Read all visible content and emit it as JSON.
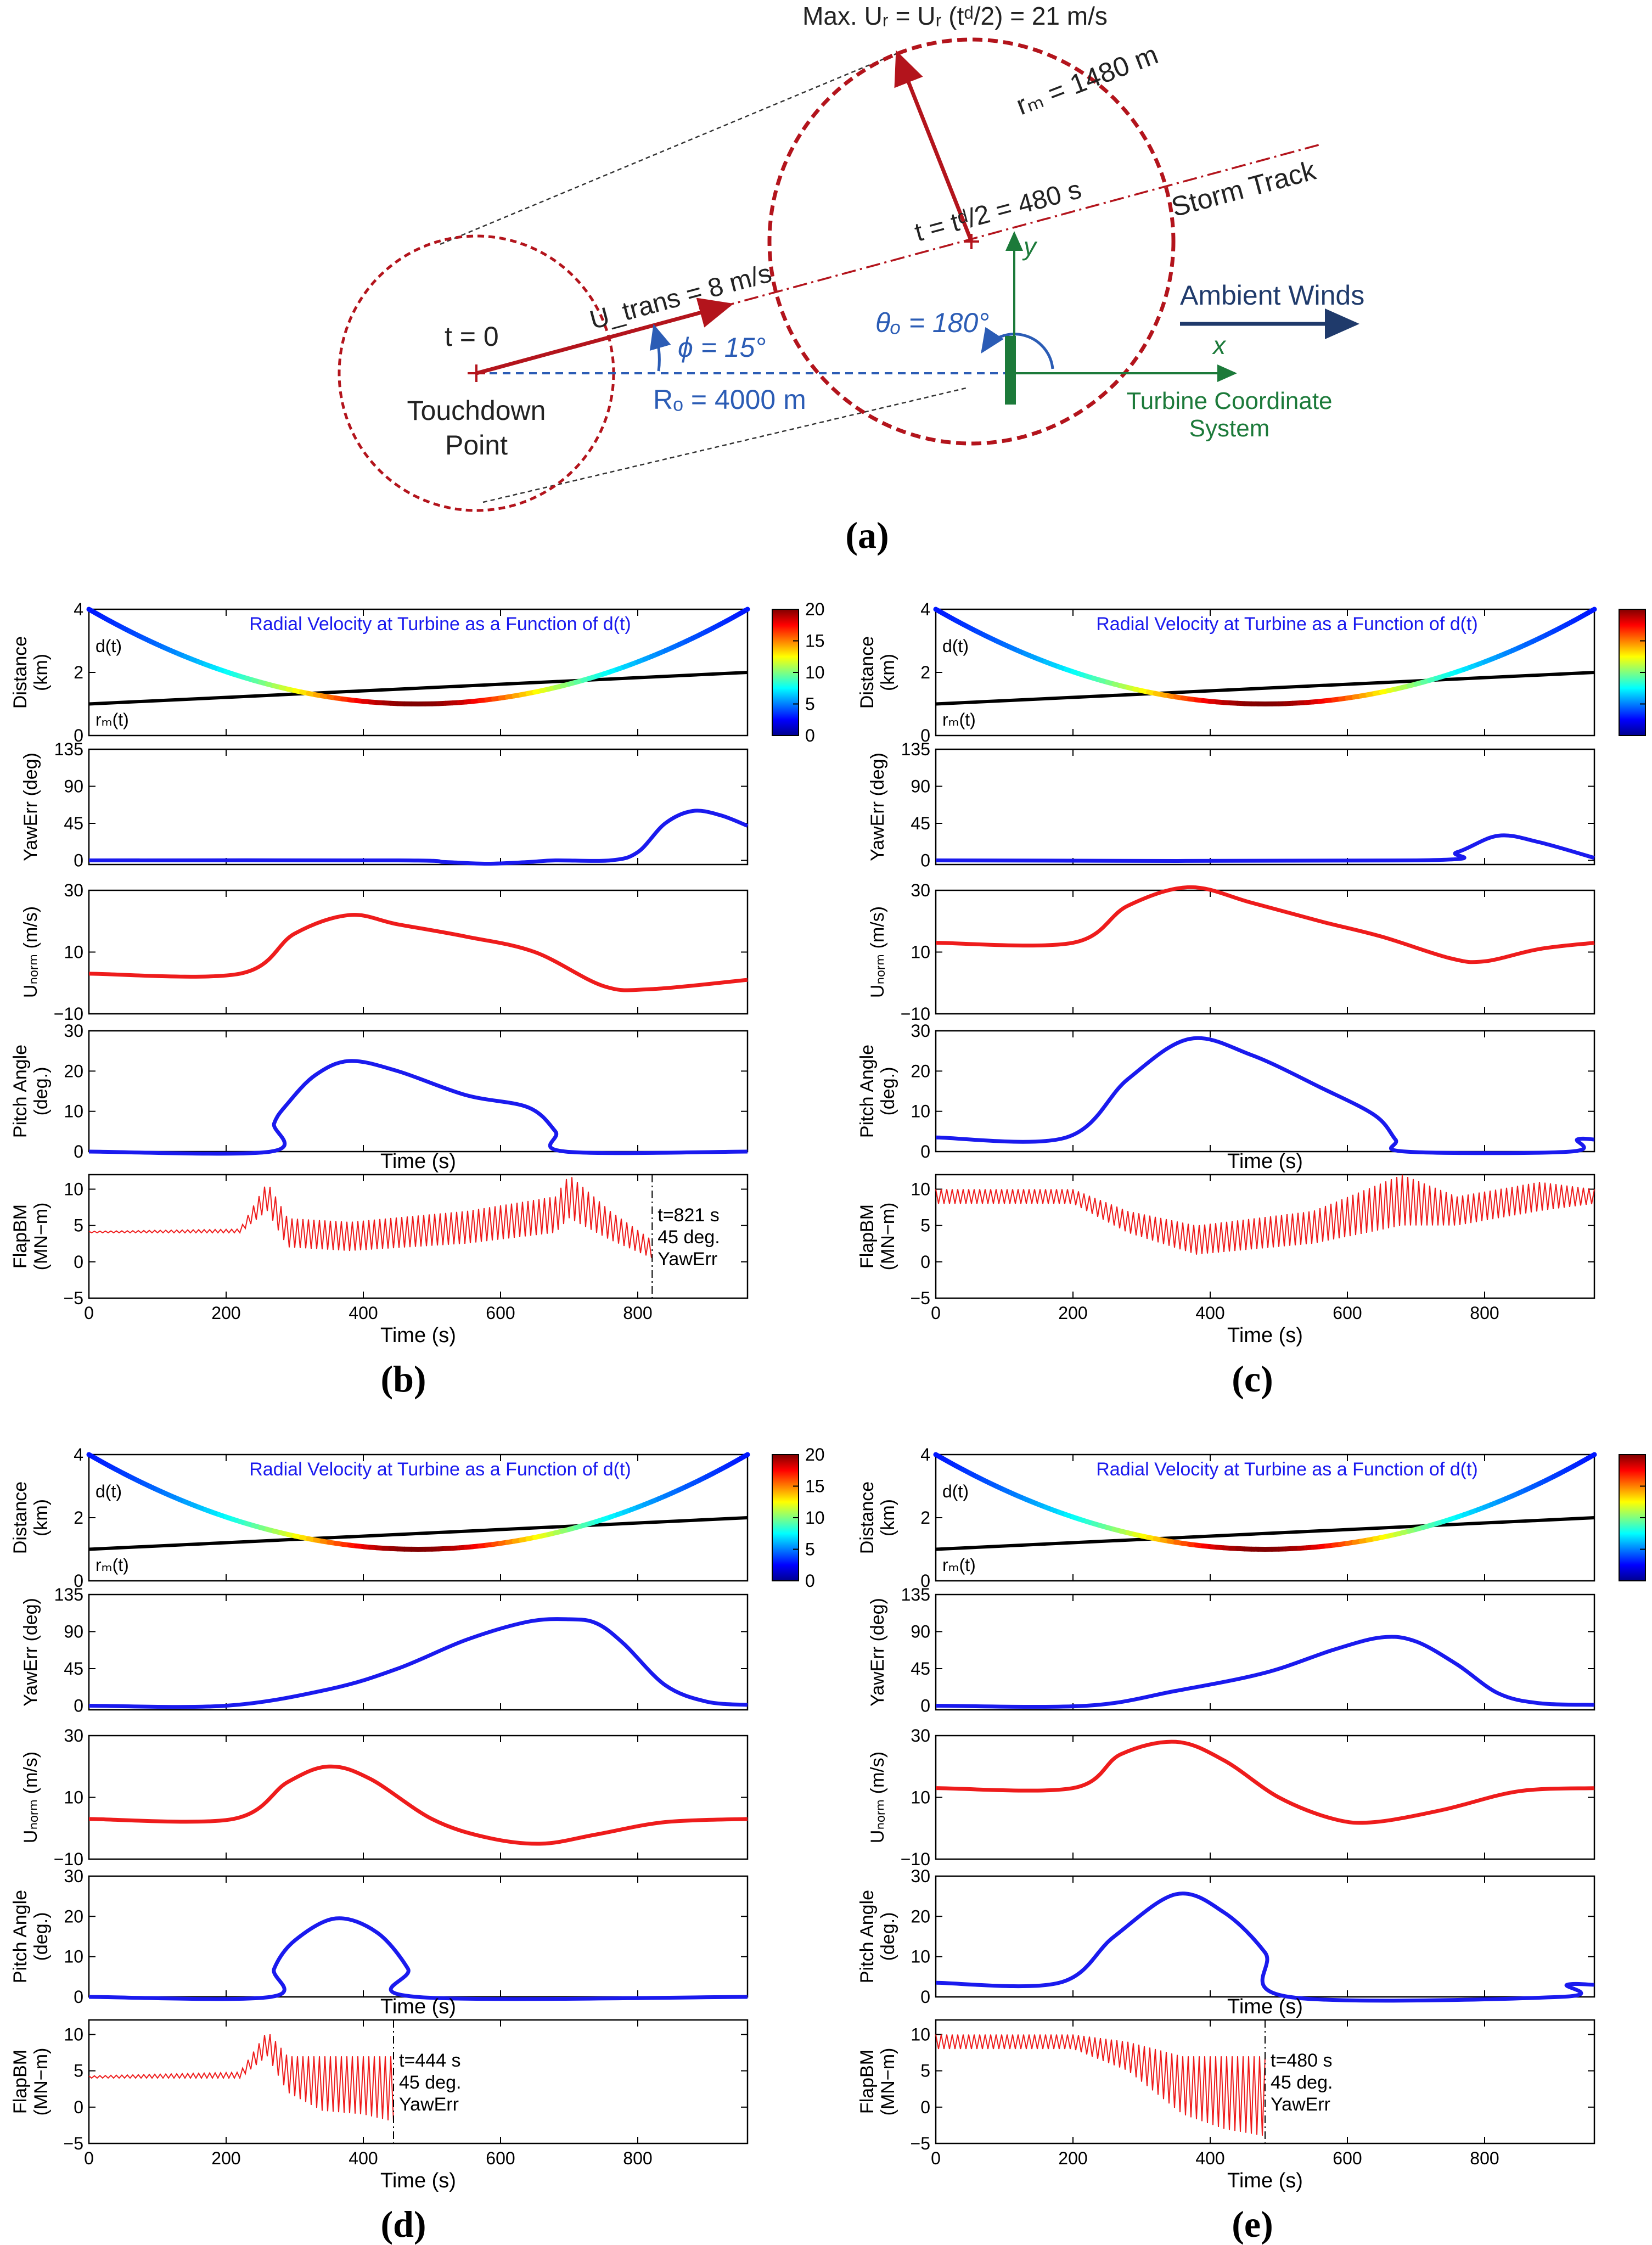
{
  "figure_labels": {
    "a": "(a)",
    "b": "(b)",
    "c": "(c)",
    "d": "(d)",
    "e": "(e)"
  },
  "diagram": {
    "max_ur": "Max. Uᵣ = Uᵣ (tᵈ/2) = 21 m/s",
    "rm_label": "rₘ = 1480 m",
    "td_label": "t = tᵈ/2 = 480 s",
    "storm_track": "Storm Track",
    "t0": "t = 0",
    "utrans": "U_trans = 8 m/s",
    "phi": "ϕ = 15°",
    "theta": "θₒ = 180°",
    "ambient_winds": "Ambient Winds",
    "x_label": "x",
    "y_label": "y",
    "touchdown_1": "Touchdown",
    "touchdown_2": "Point",
    "ro": "Rₒ = 4000 m",
    "turbine_coord_1": "Turbine Coordinate",
    "turbine_coord_2": "System"
  },
  "common": {
    "dist_title": "Radial Velocity at Turbine as a Function of d(t)",
    "dt_label": "d(t)",
    "rm_label": "rₘ(t)",
    "ylabel_distance": [
      "Distance",
      "(km)"
    ],
    "ylabel_yaw": [
      "YawErr (deg)"
    ],
    "ylabel_unorm": [
      "Uₙₒᵣₘ (m/s)"
    ],
    "ylabel_pitch": [
      "Pitch Angle",
      "(deg.)"
    ],
    "ylabel_flap": [
      "FlapBM",
      "(MN−m)"
    ],
    "xlabel": "Time (s)",
    "xlabel_hidden": "Time (s)",
    "colorbar_ticks": [
      "20",
      "15",
      "10",
      "5",
      "0"
    ],
    "colors": {
      "red": "#ee1c1c",
      "blue": "#1a1aee",
      "black": "#000000",
      "storm": "#b3141c",
      "green": "#1c7a3a",
      "navy": "#1f3a6b",
      "diagblue": "#2b5cb5"
    }
  },
  "chart_data": [
    {
      "type": "line",
      "panel": "b",
      "distance": {
        "ylim": [
          0,
          4
        ],
        "yticks": [
          "4",
          "2",
          "0"
        ],
        "d_t": [
          [
            0,
            4.0
          ],
          [
            480,
            1.0
          ],
          [
            960,
            4.0
          ]
        ],
        "r_m": [
          [
            0,
            1.0
          ],
          [
            960,
            2.0
          ]
        ],
        "colorbar_range": [
          0,
          20
        ]
      },
      "yawerr": {
        "ylim": [
          -5,
          135
        ],
        "yticks": [
          "135",
          "90",
          "45",
          "0"
        ],
        "points": [
          [
            0,
            0
          ],
          [
            450,
            0
          ],
          [
            520,
            -2
          ],
          [
            580,
            -4
          ],
          [
            640,
            -2
          ],
          [
            680,
            0
          ],
          [
            760,
            0
          ],
          [
            800,
            10
          ],
          [
            840,
            45
          ],
          [
            880,
            60
          ],
          [
            920,
            55
          ],
          [
            960,
            42
          ]
        ]
      },
      "unorm": {
        "ylim": [
          -10,
          30
        ],
        "yticks": [
          "30",
          "10",
          "−10"
        ],
        "points": [
          [
            0,
            3
          ],
          [
            220,
            3
          ],
          [
            300,
            16
          ],
          [
            380,
            22
          ],
          [
            450,
            19
          ],
          [
            550,
            15
          ],
          [
            650,
            10
          ],
          [
            750,
            -1
          ],
          [
            820,
            -2
          ],
          [
            960,
            1
          ]
        ]
      },
      "pitch": {
        "ylim": [
          0,
          30
        ],
        "yticks": [
          "30",
          "20",
          "10",
          "0"
        ],
        "points": [
          [
            0,
            0
          ],
          [
            265,
            0
          ],
          [
            270,
            7
          ],
          [
            290,
            12
          ],
          [
            330,
            19
          ],
          [
            380,
            22.5
          ],
          [
            450,
            20
          ],
          [
            550,
            14
          ],
          [
            640,
            11
          ],
          [
            680,
            5
          ],
          [
            695,
            0
          ],
          [
            960,
            0
          ]
        ]
      },
      "flapbm": {
        "ylim": [
          -5,
          12
        ],
        "yticks": [
          "10",
          "5",
          "0",
          "−5"
        ],
        "t_end": 821,
        "env": [
          [
            0,
            4,
            4.2
          ],
          [
            220,
            4,
            4.5
          ],
          [
            260,
            7,
            11
          ],
          [
            290,
            2,
            6
          ],
          [
            380,
            1.5,
            5.5
          ],
          [
            550,
            2.5,
            7
          ],
          [
            680,
            4,
            9
          ],
          [
            700,
            6,
            12
          ],
          [
            760,
            3,
            7
          ],
          [
            821,
            0.5,
            3
          ]
        ]
      },
      "annotation": [
        "t=821 s",
        "45 deg.",
        "YawErr"
      ],
      "xticks": [
        "0",
        "200",
        "400",
        "600",
        "800"
      ],
      "xlim": [
        0,
        960
      ]
    },
    {
      "type": "line",
      "panel": "c",
      "distance": {
        "ylim": [
          0,
          4
        ],
        "yticks": [
          "4",
          "2",
          "0"
        ],
        "d_t": [
          [
            0,
            4.0
          ],
          [
            480,
            1.0
          ],
          [
            960,
            4.0
          ]
        ],
        "r_m": [
          [
            0,
            1.0
          ],
          [
            960,
            2.0
          ]
        ],
        "colorbar_range": [
          0,
          20
        ]
      },
      "yawerr": {
        "ylim": [
          -5,
          135
        ],
        "yticks": [
          "135",
          "90",
          "45",
          "0"
        ],
        "points": [
          [
            0,
            0
          ],
          [
            700,
            0
          ],
          [
            760,
            10
          ],
          [
            820,
            30
          ],
          [
            880,
            22
          ],
          [
            960,
            3
          ]
        ]
      },
      "unorm": {
        "ylim": [
          -10,
          30
        ],
        "yticks": [
          "30",
          "10",
          "−10"
        ],
        "points": [
          [
            0,
            13
          ],
          [
            200,
            13
          ],
          [
            280,
            25
          ],
          [
            370,
            31
          ],
          [
            460,
            26
          ],
          [
            560,
            20
          ],
          [
            650,
            15
          ],
          [
            750,
            8
          ],
          [
            800,
            7
          ],
          [
            880,
            11
          ],
          [
            960,
            13
          ]
        ]
      },
      "pitch": {
        "ylim": [
          0,
          30
        ],
        "yticks": [
          "30",
          "20",
          "10",
          "0"
        ],
        "points": [
          [
            0,
            3.5
          ],
          [
            190,
            3.5
          ],
          [
            280,
            18
          ],
          [
            370,
            28
          ],
          [
            460,
            24
          ],
          [
            560,
            16
          ],
          [
            640,
            9
          ],
          [
            670,
            3
          ],
          [
            685,
            0
          ],
          [
            925,
            0
          ],
          [
            935,
            3
          ],
          [
            960,
            3
          ]
        ]
      },
      "flapbm": {
        "ylim": [
          -5,
          12
        ],
        "yticks": [
          "10",
          "5",
          "0",
          "−5"
        ],
        "t_end": 960,
        "env": [
          [
            0,
            8,
            10
          ],
          [
            200,
            8,
            10
          ],
          [
            280,
            4,
            7
          ],
          [
            380,
            1,
            5
          ],
          [
            550,
            2.5,
            7
          ],
          [
            680,
            5,
            12
          ],
          [
            760,
            5,
            9
          ],
          [
            880,
            7,
            11
          ],
          [
            960,
            8,
            10
          ]
        ]
      },
      "annotation": [],
      "xticks": [
        "0",
        "200",
        "400",
        "600",
        "800"
      ],
      "xlim": [
        0,
        960
      ]
    },
    {
      "type": "line",
      "panel": "d",
      "distance": {
        "ylim": [
          0,
          4
        ],
        "yticks": [
          "4",
          "2",
          "0"
        ],
        "d_t": [
          [
            0,
            4.0
          ],
          [
            480,
            1.0
          ],
          [
            960,
            4.0
          ]
        ],
        "r_m": [
          [
            0,
            1.0
          ],
          [
            960,
            2.0
          ]
        ],
        "colorbar_range": [
          0,
          20
        ]
      },
      "yawerr": {
        "ylim": [
          -5,
          135
        ],
        "yticks": [
          "135",
          "90",
          "45",
          "0"
        ],
        "points": [
          [
            0,
            0
          ],
          [
            200,
            0
          ],
          [
            350,
            20
          ],
          [
            450,
            45
          ],
          [
            550,
            80
          ],
          [
            640,
            102
          ],
          [
            700,
            105
          ],
          [
            740,
            100
          ],
          [
            780,
            75
          ],
          [
            840,
            25
          ],
          [
            900,
            5
          ],
          [
            960,
            1
          ]
        ]
      },
      "unorm": {
        "ylim": [
          -10,
          30
        ],
        "yticks": [
          "30",
          "10",
          "−10"
        ],
        "points": [
          [
            0,
            3
          ],
          [
            210,
            3
          ],
          [
            290,
            15
          ],
          [
            350,
            20
          ],
          [
            410,
            16
          ],
          [
            500,
            3
          ],
          [
            580,
            -3
          ],
          [
            660,
            -5
          ],
          [
            740,
            -2
          ],
          [
            840,
            2
          ],
          [
            960,
            3
          ]
        ]
      },
      "pitch": {
        "ylim": [
          0,
          30
        ],
        "yticks": [
          "30",
          "20",
          "10",
          "0"
        ],
        "points": [
          [
            0,
            0
          ],
          [
            265,
            0
          ],
          [
            270,
            7
          ],
          [
            300,
            14
          ],
          [
            360,
            19.5
          ],
          [
            420,
            16
          ],
          [
            465,
            7
          ],
          [
            478,
            0
          ],
          [
            960,
            0
          ]
        ]
      },
      "flapbm": {
        "ylim": [
          -5,
          12
        ],
        "yticks": [
          "10",
          "5",
          "0",
          "−5"
        ],
        "t_end": 444,
        "env": [
          [
            0,
            4,
            4.3
          ],
          [
            220,
            4,
            4.8
          ],
          [
            260,
            7,
            10.5
          ],
          [
            290,
            2,
            7
          ],
          [
            340,
            -0.5,
            7
          ],
          [
            400,
            -1,
            7
          ],
          [
            444,
            -2,
            7
          ]
        ]
      },
      "annotation": [
        "t=444 s",
        "45 deg.",
        "YawErr"
      ],
      "xticks": [
        "0",
        "200",
        "400",
        "600",
        "800"
      ],
      "xlim": [
        0,
        960
      ]
    },
    {
      "type": "line",
      "panel": "e",
      "distance": {
        "ylim": [
          0,
          4
        ],
        "yticks": [
          "4",
          "2",
          "0"
        ],
        "d_t": [
          [
            0,
            4.0
          ],
          [
            480,
            1.0
          ],
          [
            960,
            4.0
          ]
        ],
        "r_m": [
          [
            0,
            1.0
          ],
          [
            960,
            2.0
          ]
        ],
        "colorbar_range": [
          0,
          20
        ]
      },
      "yawerr": {
        "ylim": [
          -5,
          135
        ],
        "yticks": [
          "135",
          "90",
          "45",
          "0"
        ],
        "points": [
          [
            0,
            0
          ],
          [
            220,
            0
          ],
          [
            350,
            18
          ],
          [
            480,
            40
          ],
          [
            580,
            68
          ],
          [
            650,
            83
          ],
          [
            700,
            78
          ],
          [
            760,
            50
          ],
          [
            820,
            15
          ],
          [
            880,
            3
          ],
          [
            960,
            1
          ]
        ]
      },
      "unorm": {
        "ylim": [
          -10,
          30
        ],
        "yticks": [
          "30",
          "10",
          "−10"
        ],
        "points": [
          [
            0,
            13
          ],
          [
            200,
            13
          ],
          [
            270,
            24
          ],
          [
            350,
            28
          ],
          [
            420,
            22
          ],
          [
            500,
            10
          ],
          [
            580,
            3
          ],
          [
            640,
            2
          ],
          [
            740,
            6
          ],
          [
            850,
            12
          ],
          [
            960,
            13
          ]
        ]
      },
      "pitch": {
        "ylim": [
          0,
          30
        ],
        "yticks": [
          "30",
          "20",
          "10",
          "0"
        ],
        "points": [
          [
            0,
            3.5
          ],
          [
            180,
            3.5
          ],
          [
            260,
            15
          ],
          [
            350,
            25.5
          ],
          [
            420,
            21
          ],
          [
            480,
            11
          ],
          [
            515,
            0
          ],
          [
            910,
            0
          ],
          [
            920,
            3
          ],
          [
            960,
            3
          ]
        ]
      },
      "flapbm": {
        "ylim": [
          -5,
          12
        ],
        "yticks": [
          "10",
          "5",
          "0",
          "−5"
        ],
        "t_end": 480,
        "env": [
          [
            0,
            8,
            10
          ],
          [
            200,
            8,
            10
          ],
          [
            280,
            5,
            9
          ],
          [
            360,
            -1,
            7
          ],
          [
            420,
            -3,
            7
          ],
          [
            480,
            -4,
            7
          ]
        ]
      },
      "annotation": [
        "t=480 s",
        "45 deg.",
        "YawErr"
      ],
      "xticks": [
        "0",
        "200",
        "400",
        "600",
        "800"
      ],
      "xlim": [
        0,
        960
      ]
    }
  ]
}
